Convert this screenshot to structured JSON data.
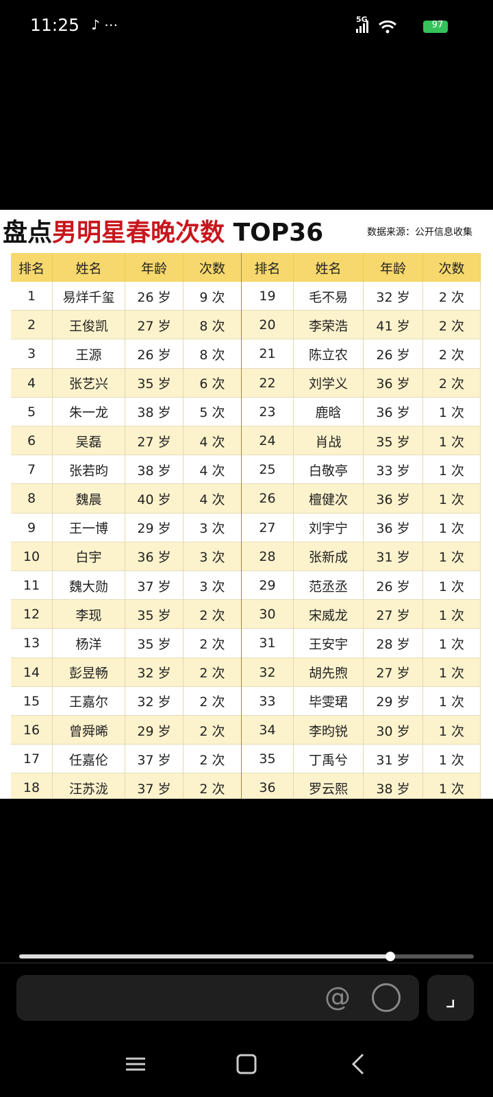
{
  "status_bar": {
    "time": "11:25",
    "network": "5G",
    "battery": "97"
  },
  "video": {
    "title_prefix": "盘点",
    "title_highlight": "男明星春晚次数",
    "title_suffix": "TOP36",
    "source": "数据来源：公开信息收集",
    "table": {
      "headers": [
        "排名",
        "姓名",
        "年龄",
        "次数"
      ],
      "rows": [
        [
          1,
          "易烊千玺",
          "26 岁",
          "9 次"
        ],
        [
          2,
          "王俊凯",
          "27 岁",
          "8 次"
        ],
        [
          3,
          "王源",
          "26 岁",
          "8 次"
        ],
        [
          4,
          "张艺兴",
          "35 岁",
          "6 次"
        ],
        [
          5,
          "朱一龙",
          "38 岁",
          "5 次"
        ],
        [
          6,
          "吴磊",
          "27 岁",
          "4 次"
        ],
        [
          7,
          "张若昀",
          "38 岁",
          "4 次"
        ],
        [
          8,
          "魏晨",
          "40 岁",
          "4 次"
        ],
        [
          9,
          "王一博",
          "29 岁",
          "3 次"
        ],
        [
          10,
          "白宇",
          "36 岁",
          "3 次"
        ],
        [
          11,
          "魏大勋",
          "37 岁",
          "3 次"
        ],
        [
          12,
          "李现",
          "35 岁",
          "2 次"
        ],
        [
          13,
          "杨洋",
          "35 岁",
          "2 次"
        ],
        [
          14,
          "彭昱畅",
          "32 岁",
          "2 次"
        ],
        [
          15,
          "王嘉尔",
          "32 岁",
          "2 次"
        ],
        [
          16,
          "曾舜晞",
          "29 岁",
          "2 次"
        ],
        [
          17,
          "任嘉伦",
          "37 岁",
          "2 次"
        ],
        [
          18,
          "汪苏泷",
          "37 岁",
          "2 次"
        ],
        [
          19,
          "毛不易",
          "32 岁",
          "2 次"
        ],
        [
          20,
          "李荣浩",
          "41 岁",
          "2 次"
        ],
        [
          21,
          "陈立农",
          "26 岁",
          "2 次"
        ],
        [
          22,
          "刘学义",
          "36 岁",
          "2 次"
        ],
        [
          23,
          "鹿晗",
          "36 岁",
          "1 次"
        ],
        [
          24,
          "肖战",
          "35 岁",
          "1 次"
        ],
        [
          25,
          "白敬亭",
          "33 岁",
          "1 次"
        ],
        [
          26,
          "檀健次",
          "36 岁",
          "1 次"
        ],
        [
          27,
          "刘宇宁",
          "36 岁",
          "1 次"
        ],
        [
          28,
          "张新成",
          "31 岁",
          "1 次"
        ],
        [
          29,
          "范丞丞",
          "26 岁",
          "1 次"
        ],
        [
          30,
          "宋威龙",
          "27 岁",
          "1 次"
        ],
        [
          31,
          "王安宇",
          "28 岁",
          "1 次"
        ],
        [
          32,
          "胡先煦",
          "27 岁",
          "1 次"
        ],
        [
          33,
          "毕雯珺",
          "29 岁",
          "1 次"
        ],
        [
          34,
          "李昀锐",
          "30 岁",
          "1 次"
        ],
        [
          35,
          "丁禹兮",
          "31 岁",
          "1 次"
        ],
        [
          36,
          "罗云熙",
          "38 岁",
          "1 次"
        ]
      ]
    }
  }
}
